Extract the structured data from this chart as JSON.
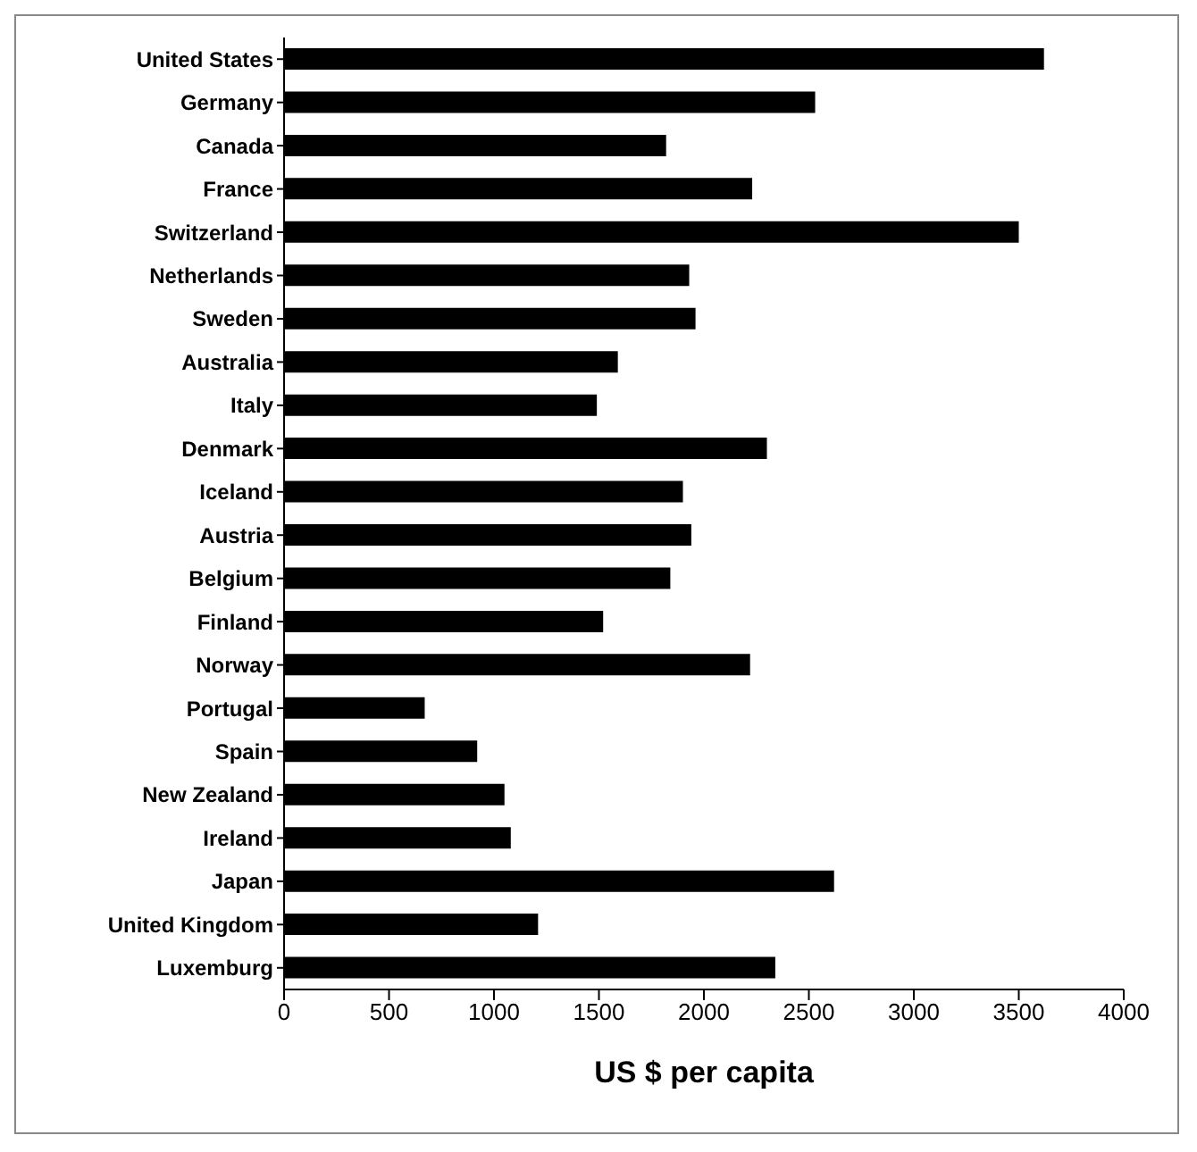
{
  "chart_data": {
    "type": "bar",
    "orientation": "horizontal",
    "xlabel": "US $ per capita",
    "categories": [
      "United States",
      "Germany",
      "Canada",
      "France",
      "Switzerland",
      "Netherlands",
      "Sweden",
      "Australia",
      "Italy",
      "Denmark",
      "Iceland",
      "Austria",
      "Belgium",
      "Finland",
      "Norway",
      "Portugal",
      "Spain",
      "New Zealand",
      "Ireland",
      "Japan",
      "United Kingdom",
      "Luxemburg"
    ],
    "values": [
      3620,
      2530,
      1820,
      2230,
      3500,
      1930,
      1960,
      1590,
      1490,
      2300,
      1900,
      1940,
      1840,
      1520,
      2220,
      670,
      920,
      1050,
      1080,
      2620,
      1210,
      2340
    ],
    "color": "#000000",
    "xlim": [
      0,
      4000
    ],
    "xticks": [
      0,
      500,
      1000,
      1500,
      2000,
      2500,
      3000,
      3500,
      4000
    ],
    "grid": false,
    "legend": false
  }
}
